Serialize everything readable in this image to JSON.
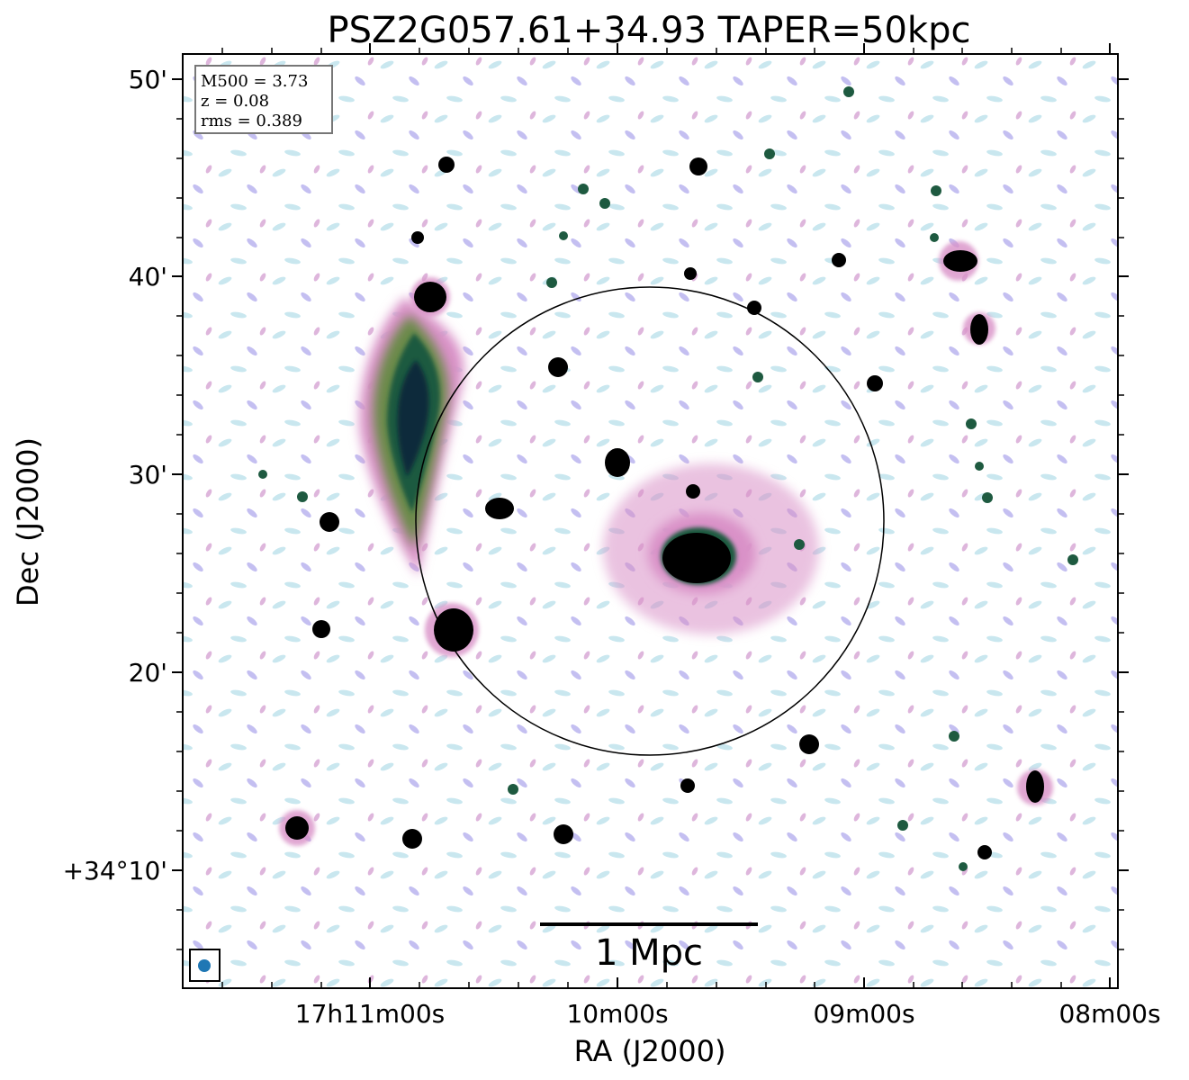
{
  "figure": {
    "title": "PSZ2G057.61+34.93 TAPER=50kpc",
    "info_box": [
      "M500 = 3.73",
      "z = 0.08",
      "rms = 0.389"
    ],
    "scale_bar_label": "1 Mpc",
    "xlabel": "RA (J2000)",
    "ylabel": "Dec (J2000)",
    "x_ticks": [
      "17h11m00s",
      "10m00s",
      "09m00s",
      "08m00s"
    ],
    "y_ticks": [
      "50'",
      "40'",
      "30'",
      "20'",
      "+34°10'"
    ],
    "colormap": [
      "#ffffff",
      "#bfe3ec",
      "#b9b4ee",
      "#d991c7",
      "#1e6a3a",
      "#0a2a3a",
      "#000000"
    ],
    "beam_color": "#1f77b4",
    "circle_color": "#000000"
  }
}
